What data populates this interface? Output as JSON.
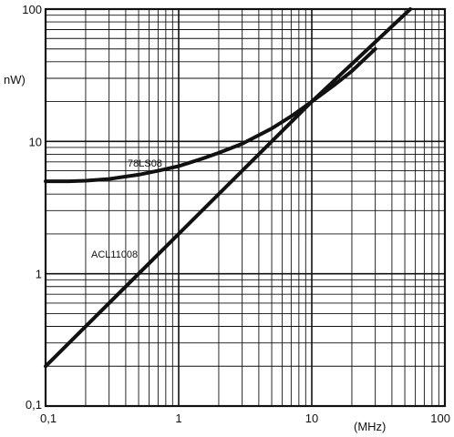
{
  "chart_data": {
    "type": "line",
    "x_scale": "log",
    "y_scale": "log",
    "xlim": [
      0.1,
      100
    ],
    "ylim": [
      0.1,
      100
    ],
    "grid": true,
    "x_ticks": [
      "0,1",
      "1",
      "10",
      "100"
    ],
    "y_ticks": [
      "0,1",
      "1",
      "10",
      "100"
    ],
    "x_unit": "(MHz)",
    "y_unit": "nW)",
    "series": [
      {
        "name": "78LS08",
        "x": [
          0.1,
          0.15,
          0.2,
          0.3,
          0.5,
          0.7,
          1,
          1.5,
          2,
          3,
          5,
          7,
          10,
          15,
          20,
          30
        ],
        "y": [
          5,
          5,
          5.05,
          5.2,
          5.6,
          6.0,
          6.5,
          7.4,
          8.2,
          9.6,
          12.5,
          15.5,
          20,
          27,
          34,
          50
        ]
      },
      {
        "name": "ACL11008",
        "x": [
          0.1,
          1,
          10,
          55
        ],
        "y": [
          0.2,
          2,
          20,
          110
        ]
      }
    ]
  }
}
